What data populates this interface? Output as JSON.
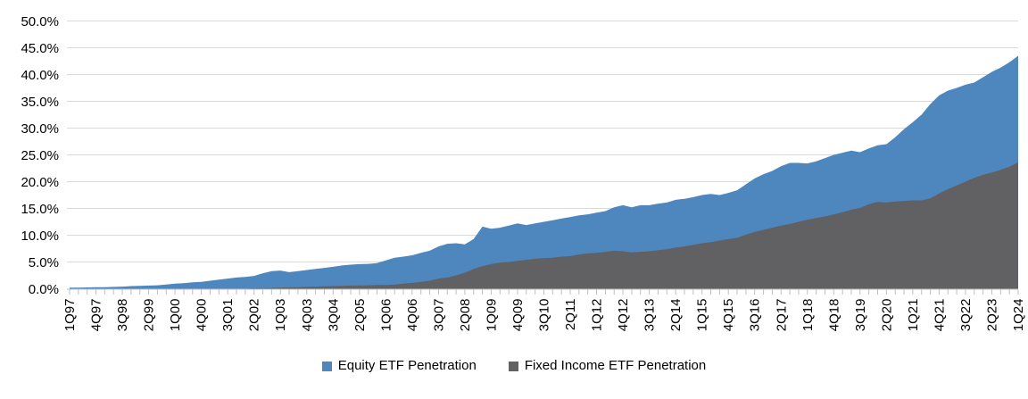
{
  "chart_data": {
    "type": "area",
    "title": "",
    "unit": "percent",
    "overlaid": true,
    "grid": "horizontal",
    "legend_position": "bottom-center",
    "ylim": [
      0,
      50
    ],
    "y_tick_step": 5,
    "y_tick_format": "0.0%",
    "x_tick_label_every": 3,
    "gridline_color": "#D9D9D9",
    "axis_color": "#BFBFBF",
    "label_color": "#000000",
    "x_categories": [
      "1Q97",
      "2Q97",
      "3Q97",
      "4Q97",
      "1Q98",
      "2Q98",
      "3Q98",
      "4Q98",
      "1Q99",
      "2Q99",
      "3Q99",
      "4Q99",
      "1Q00",
      "2Q00",
      "3Q00",
      "4Q00",
      "1Q01",
      "2Q01",
      "3Q01",
      "4Q01",
      "1Q02",
      "2Q02",
      "3Q02",
      "4Q02",
      "1Q03",
      "2Q03",
      "3Q03",
      "4Q03",
      "1Q04",
      "2Q04",
      "3Q04",
      "4Q04",
      "1Q05",
      "2Q05",
      "3Q05",
      "4Q05",
      "1Q06",
      "2Q06",
      "3Q06",
      "4Q06",
      "1Q07",
      "2Q07",
      "3Q07",
      "4Q07",
      "1Q08",
      "2Q08",
      "3Q08",
      "4Q08",
      "1Q09",
      "2Q09",
      "3Q09",
      "4Q09",
      "1Q10",
      "2Q10",
      "3Q10",
      "4Q10",
      "1Q11",
      "2Q11",
      "3Q11",
      "4Q11",
      "1Q12",
      "2Q12",
      "3Q12",
      "4Q12",
      "1Q13",
      "2Q13",
      "3Q13",
      "4Q13",
      "1Q14",
      "2Q14",
      "3Q14",
      "4Q14",
      "1Q15",
      "2Q15",
      "3Q15",
      "4Q15",
      "1Q16",
      "2Q16",
      "3Q16",
      "4Q16",
      "1Q17",
      "2Q17",
      "3Q17",
      "4Q17",
      "1Q18",
      "2Q18",
      "3Q18",
      "4Q18",
      "1Q19",
      "2Q19",
      "3Q19",
      "4Q19",
      "1Q20",
      "2Q20",
      "3Q20",
      "4Q20",
      "1Q21",
      "2Q21",
      "3Q21",
      "4Q21",
      "1Q22",
      "2Q22",
      "3Q22",
      "4Q22",
      "1Q23",
      "2Q23",
      "3Q23",
      "4Q23",
      "1Q24"
    ],
    "x_tick_labels_shown": [
      "1Q97",
      "4Q97",
      "3Q98",
      "2Q99",
      "1Q00",
      "4Q00",
      "3Q01",
      "2Q02",
      "1Q03",
      "4Q03",
      "3Q04",
      "2Q05",
      "1Q06",
      "4Q06",
      "3Q07",
      "2Q08",
      "1Q09",
      "4Q09",
      "3Q10",
      "2Q11",
      "1Q12",
      "4Q12",
      "3Q13",
      "2Q14",
      "1Q15",
      "4Q15",
      "3Q16",
      "2Q17",
      "1Q18",
      "4Q18",
      "3Q19",
      "2Q20",
      "1Q21",
      "4Q21",
      "3Q22",
      "2Q23",
      "1Q24"
    ],
    "y_tick_labels": [
      "0.0%",
      "5.0%",
      "10.0%",
      "15.0%",
      "20.0%",
      "25.0%",
      "30.0%",
      "35.0%",
      "40.0%",
      "45.0%",
      "50.0%"
    ],
    "series": [
      {
        "name": "Equity ETF Penetration",
        "color": "#4E87BE",
        "values": [
          0.2,
          0.2,
          0.25,
          0.3,
          0.3,
          0.35,
          0.4,
          0.5,
          0.55,
          0.6,
          0.65,
          0.8,
          0.95,
          1.05,
          1.2,
          1.3,
          1.5,
          1.7,
          1.9,
          2.1,
          2.2,
          2.4,
          2.9,
          3.3,
          3.4,
          3.1,
          3.3,
          3.5,
          3.7,
          3.9,
          4.1,
          4.35,
          4.5,
          4.6,
          4.65,
          4.8,
          5.3,
          5.8,
          6.0,
          6.25,
          6.7,
          7.1,
          7.9,
          8.4,
          8.5,
          8.3,
          9.3,
          11.6,
          11.2,
          11.4,
          11.8,
          12.2,
          11.9,
          12.2,
          12.5,
          12.8,
          13.1,
          13.4,
          13.7,
          13.9,
          14.2,
          14.5,
          15.2,
          15.6,
          15.2,
          15.6,
          15.6,
          15.9,
          16.1,
          16.6,
          16.8,
          17.1,
          17.5,
          17.7,
          17.5,
          17.9,
          18.4,
          19.5,
          20.6,
          21.4,
          22.0,
          22.9,
          23.5,
          23.5,
          23.4,
          23.8,
          24.4,
          25.0,
          25.4,
          25.8,
          25.5,
          26.2,
          26.8,
          27.0,
          28.3,
          29.8,
          31.1,
          32.5,
          34.5,
          36.1,
          37.0,
          37.5,
          38.1,
          38.5,
          39.5,
          40.5,
          41.3,
          42.3,
          43.5
        ]
      },
      {
        "name": "Fixed Income ETF Penetration",
        "color": "#616164",
        "values": [
          0,
          0,
          0,
          0,
          0,
          0,
          0,
          0,
          0,
          0,
          0,
          0,
          0,
          0,
          0,
          0,
          0,
          0,
          0,
          0,
          0,
          0.1,
          0.1,
          0.15,
          0.2,
          0.25,
          0.3,
          0.35,
          0.4,
          0.45,
          0.5,
          0.55,
          0.6,
          0.6,
          0.65,
          0.7,
          0.7,
          0.8,
          0.95,
          1.1,
          1.3,
          1.5,
          1.9,
          2.1,
          2.5,
          3.0,
          3.7,
          4.2,
          4.6,
          4.9,
          5.0,
          5.2,
          5.4,
          5.6,
          5.7,
          5.8,
          6.0,
          6.1,
          6.4,
          6.6,
          6.7,
          6.9,
          7.1,
          7.0,
          6.8,
          6.9,
          7.0,
          7.2,
          7.4,
          7.7,
          7.9,
          8.2,
          8.5,
          8.7,
          9.0,
          9.3,
          9.5,
          10.1,
          10.6,
          11.0,
          11.4,
          11.8,
          12.1,
          12.5,
          12.9,
          13.2,
          13.5,
          13.9,
          14.3,
          14.75,
          15.1,
          15.8,
          16.2,
          16.1,
          16.3,
          16.4,
          16.5,
          16.5,
          16.9,
          17.8,
          18.6,
          19.3,
          20.0,
          20.7,
          21.3,
          21.7,
          22.2,
          22.8,
          23.6
        ]
      }
    ]
  },
  "legend": {
    "equity_label": "Equity ETF Penetration",
    "fixed_income_label": "Fixed Income ETF Penetration"
  }
}
